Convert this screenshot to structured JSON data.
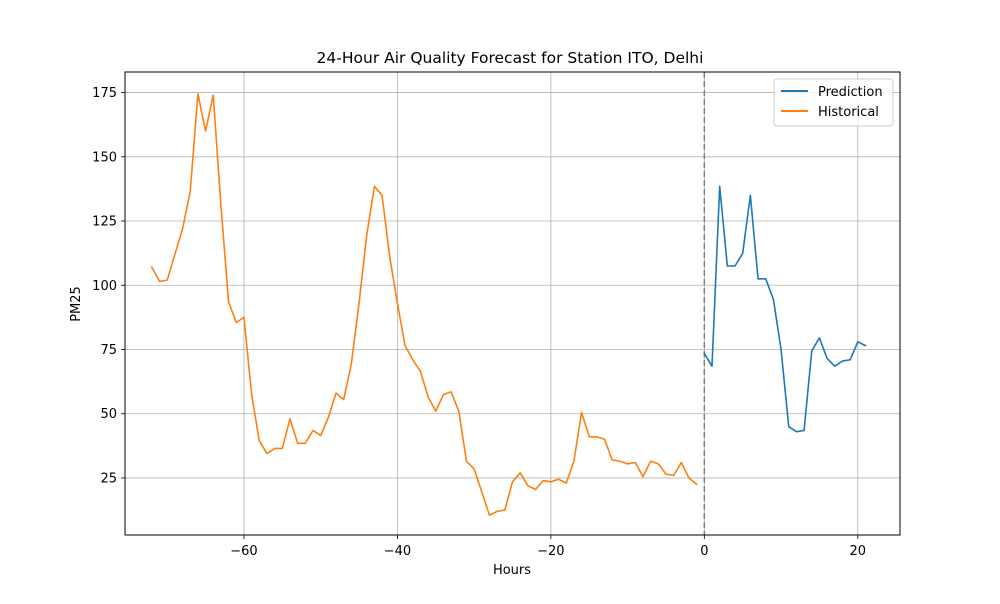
{
  "chart_data": {
    "type": "line",
    "title": "24-Hour Air Quality Forecast for Station ITO, Delhi",
    "xlabel": "Hours",
    "ylabel": "PM25",
    "xlim": [
      -75.5,
      25.5
    ],
    "ylim": [
      2.8,
      183
    ],
    "xticks": [
      -60,
      -40,
      -20,
      0,
      20
    ],
    "xtick_labels": [
      "−60",
      "−40",
      "−20",
      "0",
      "20"
    ],
    "yticks": [
      25,
      50,
      75,
      100,
      125,
      150,
      175
    ],
    "ytick_labels": [
      "25",
      "50",
      "75",
      "100",
      "125",
      "150",
      "175"
    ],
    "grid": true,
    "legend_position": "top-right",
    "vline": {
      "x": 0,
      "style": "dashed",
      "color": "#808080"
    },
    "series": [
      {
        "name": "Prediction",
        "color": "#1f77b4",
        "x": [
          0,
          1,
          2,
          3,
          4,
          5,
          6,
          7,
          8,
          9,
          10,
          11,
          12,
          13,
          14,
          15,
          16,
          17,
          18,
          19,
          20,
          21
        ],
        "y": [
          73.5,
          68.5,
          138.5,
          107.5,
          107.5,
          112.5,
          135,
          102.5,
          102.5,
          94.5,
          75,
          45,
          43,
          43.5,
          74.5,
          79.5,
          71.5,
          68.5,
          70.5,
          71,
          78,
          76.5
        ]
      },
      {
        "name": "Historical",
        "color": "#ff7f0e",
        "x": [
          -72,
          -71,
          -70,
          -69,
          -68,
          -67,
          -66,
          -65,
          -64,
          -63,
          -62,
          -61,
          -60,
          -59,
          -58,
          -57,
          -56,
          -55,
          -54,
          -53,
          -52,
          -51,
          -50,
          -49,
          -48,
          -47,
          -46,
          -45,
          -44,
          -43,
          -42,
          -41,
          -40,
          -39,
          -38,
          -37,
          -36,
          -35,
          -34,
          -33,
          -32,
          -31,
          -30,
          -29,
          -28,
          -27,
          -26,
          -25,
          -24,
          -23,
          -22,
          -21,
          -20,
          -19,
          -18,
          -17,
          -16,
          -15,
          -14,
          -13,
          -12,
          -11,
          -10,
          -9,
          -8,
          -7,
          -6,
          -5,
          -4,
          -3,
          -2,
          -1
        ],
        "y": [
          107,
          101.5,
          102,
          112,
          122,
          136.5,
          174.5,
          160,
          174,
          131,
          93.5,
          85.5,
          87.5,
          57.5,
          39.5,
          34.5,
          36.5,
          36.5,
          48,
          38.5,
          38.5,
          43.5,
          41.5,
          48.5,
          58,
          55.5,
          69.5,
          93,
          119.5,
          138.5,
          135,
          111,
          93,
          76.5,
          71,
          66.5,
          56.5,
          51,
          57.5,
          58.5,
          51,
          31.5,
          28.5,
          19.5,
          10.5,
          12,
          12.5,
          23.5,
          27,
          22,
          20.5,
          24,
          23.5,
          24.5,
          23,
          31.5,
          50.5,
          41,
          41,
          40,
          32,
          31.5,
          30.5,
          31,
          25.5,
          31.5,
          30.5,
          26.5,
          26,
          31,
          25,
          22.5
        ]
      }
    ]
  }
}
